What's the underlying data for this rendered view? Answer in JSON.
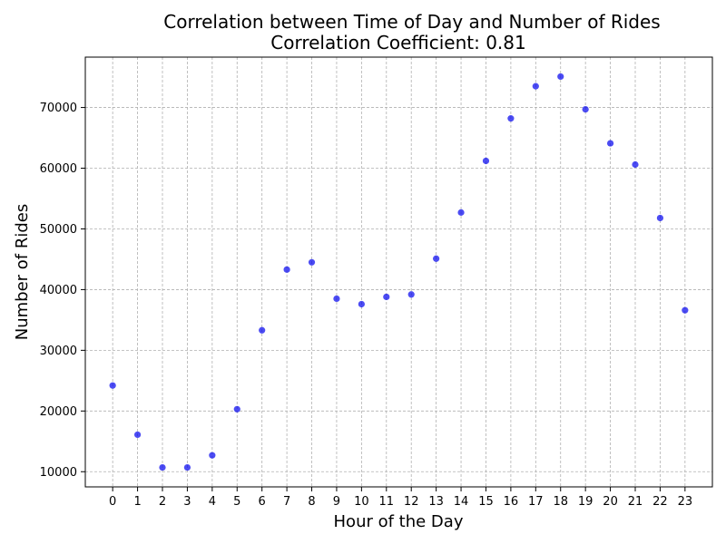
{
  "chart_data": {
    "type": "scatter",
    "title": "Correlation between Time of Day and Number of Rides",
    "subtitle": "Correlation Coefficient: 0.81",
    "xlabel": "Hour of the Day",
    "ylabel": "Number of Rides",
    "x": [
      0,
      1,
      2,
      3,
      4,
      5,
      6,
      7,
      8,
      9,
      10,
      11,
      12,
      13,
      14,
      15,
      16,
      17,
      18,
      19,
      20,
      21,
      22,
      23
    ],
    "y": [
      24200,
      16100,
      10700,
      10700,
      12700,
      20300,
      33300,
      43300,
      44500,
      38500,
      37600,
      38800,
      39200,
      45100,
      52700,
      61200,
      68200,
      73500,
      75100,
      69700,
      64100,
      60600,
      51800,
      36600
    ],
    "xlim": [
      -1.1,
      24.1
    ],
    "ylim": [
      7500,
      78300
    ],
    "xticks": [
      0,
      1,
      2,
      3,
      4,
      5,
      6,
      7,
      8,
      9,
      10,
      11,
      12,
      13,
      14,
      15,
      16,
      17,
      18,
      19,
      20,
      21,
      22,
      23
    ],
    "yticks": [
      10000,
      20000,
      30000,
      40000,
      50000,
      60000,
      70000
    ],
    "grid": true,
    "point_color": "#0000ee"
  }
}
